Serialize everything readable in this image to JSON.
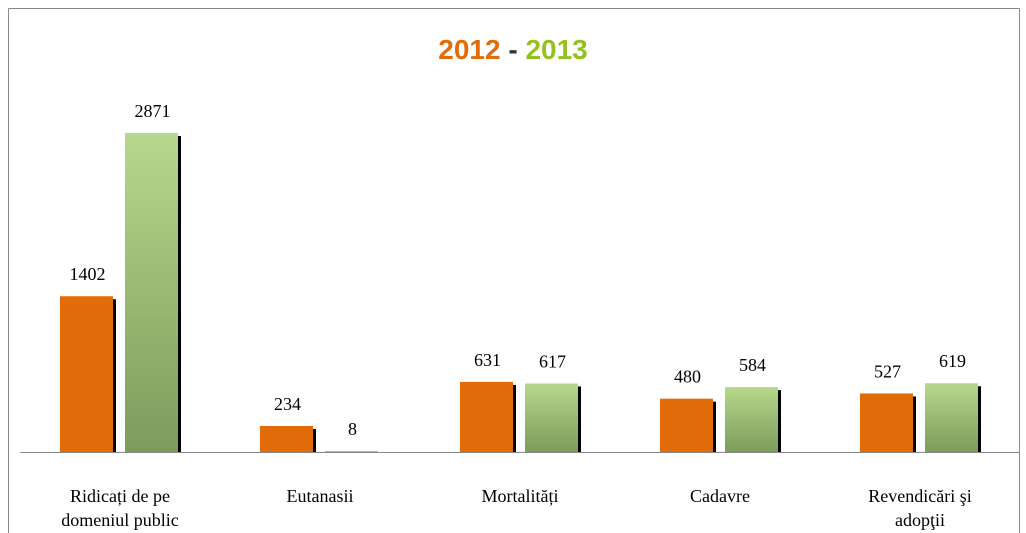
{
  "chart_data": {
    "type": "bar",
    "title_separator": "-",
    "categories": [
      "Ridicați de pe domeniul public",
      "Eutanasii",
      "Mortalități",
      "Cadavre",
      "Revendicări şi adopţii"
    ],
    "series": [
      {
        "name": "2012",
        "color": "#e36c0a",
        "values": [
          1402,
          234,
          631,
          480,
          527
        ]
      },
      {
        "name": "2013",
        "color": "#94c11f",
        "values": [
          2871,
          8,
          617,
          584,
          619
        ]
      }
    ]
  }
}
